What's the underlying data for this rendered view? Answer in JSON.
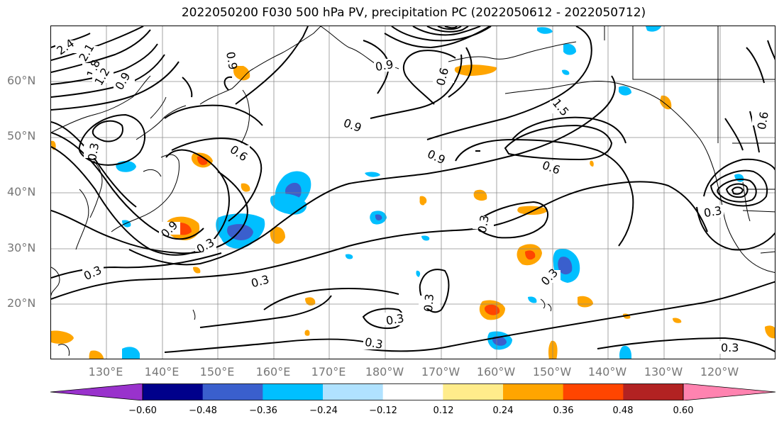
{
  "title": "2022050200 F030 500 hPa PV, precipitation PC (2022050612 - 2022050712)",
  "lat_labels": [
    "60°N",
    "50°N",
    "40°N",
    "30°N",
    "20°N"
  ],
  "lon_labels": [
    "130°E",
    "140°E",
    "150°E",
    "160°E",
    "170°E",
    "180°W",
    "170°W",
    "160°W",
    "150°W",
    "140°W",
    "130°W",
    "120°W"
  ],
  "contour_labels": [
    "2.4",
    "2.1",
    "1.8",
    "1.2",
    "0.9",
    "0.3",
    "0.6",
    "0.9",
    "0.9",
    "0.9",
    "0.6",
    "1.5",
    "0.9",
    "0.6",
    "0.3",
    "0.3",
    "0.3",
    "0.3",
    "0.3",
    "0.3",
    "0.3",
    "0.3",
    "0.9",
    "0.3",
    "0.6",
    "0.3"
  ],
  "colorbar": {
    "ticks": [
      "−0.60",
      "−0.48",
      "−0.36",
      "−0.24",
      "−0.12",
      "0.12",
      "0.24",
      "0.36",
      "0.48",
      "0.60"
    ],
    "colors": [
      "#9932cc",
      "#00008b",
      "#3a5fcd",
      "#00bfff",
      "#b0e2ff",
      "#ffffff",
      "#ffec8b",
      "#ffa500",
      "#ff4500",
      "#b22222",
      "#ff83b0"
    ]
  },
  "colors": {
    "contour": "#000000",
    "grid": "#808080",
    "coast": "#000000"
  }
}
